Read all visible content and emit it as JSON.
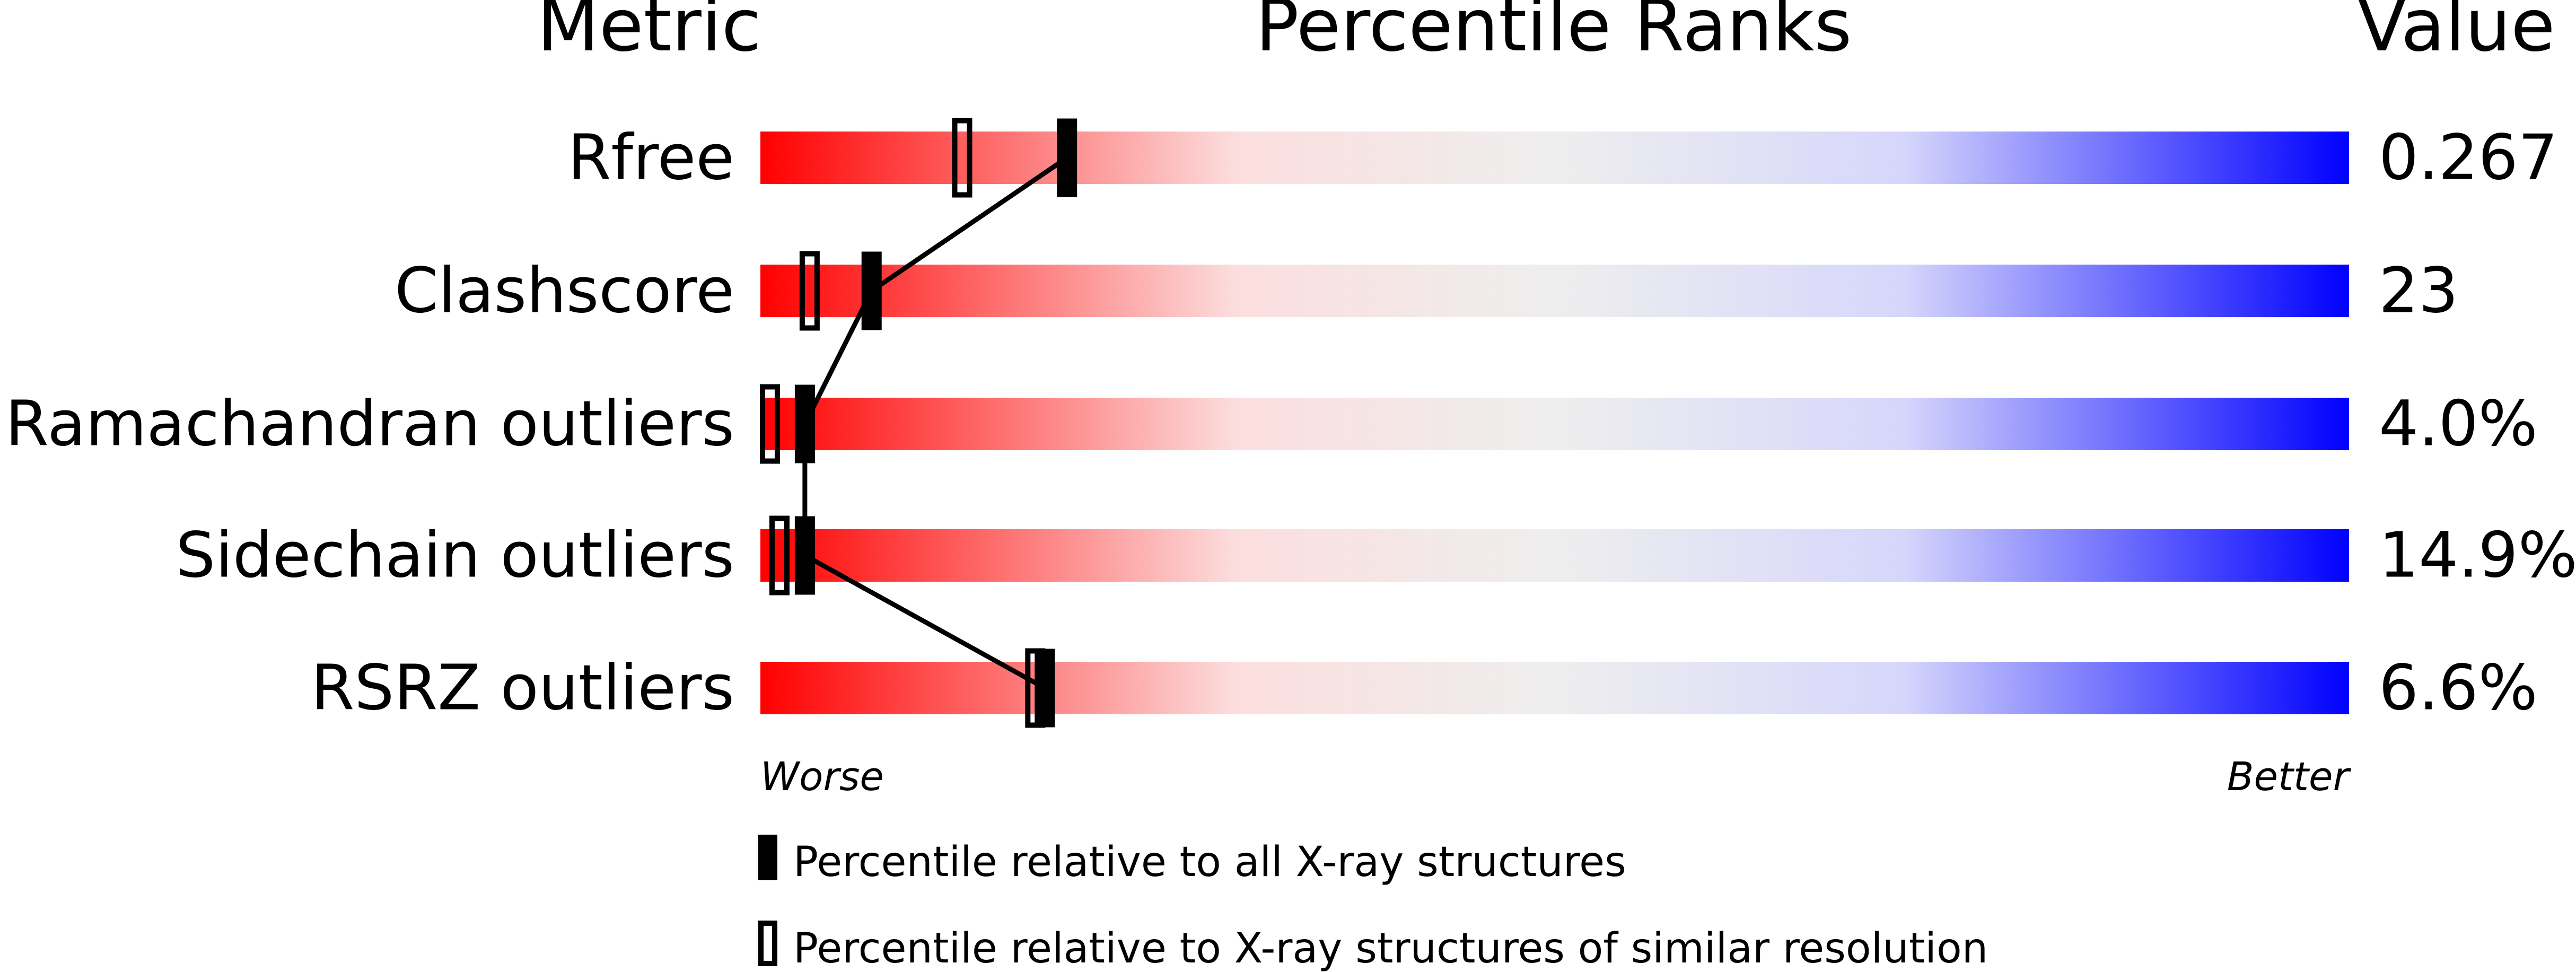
{
  "chart_data": {
    "type": "bar",
    "headers": {
      "metric": "Metric",
      "percentile": "Percentile Ranks",
      "value": "Value"
    },
    "xlim": [
      0,
      100
    ],
    "axis_labels": {
      "left": "Worse",
      "right": "Better"
    },
    "gradient_colors": [
      "#ff0000",
      "#eeeeee",
      "#0000ff"
    ],
    "rows": [
      {
        "metric": "Rfree",
        "value": "0.267",
        "percentile_all": 19.3,
        "percentile_similar": 12.7
      },
      {
        "metric": "Clashscore",
        "value": "23",
        "percentile_all": 7.0,
        "percentile_similar": 3.1
      },
      {
        "metric": "Ramachandran outliers",
        "value": "4.0%",
        "percentile_all": 2.8,
        "percentile_similar": 0.6
      },
      {
        "metric": "Sidechain outliers",
        "value": "14.9%",
        "percentile_all": 2.8,
        "percentile_similar": 1.2
      },
      {
        "metric": "RSRZ outliers",
        "value": "6.6%",
        "percentile_all": 17.9,
        "percentile_similar": 17.3
      }
    ],
    "legend": [
      {
        "marker": "filled",
        "label": "Percentile relative to all X-ray structures"
      },
      {
        "marker": "open",
        "label": "Percentile relative to X-ray structures of similar resolution"
      }
    ]
  }
}
